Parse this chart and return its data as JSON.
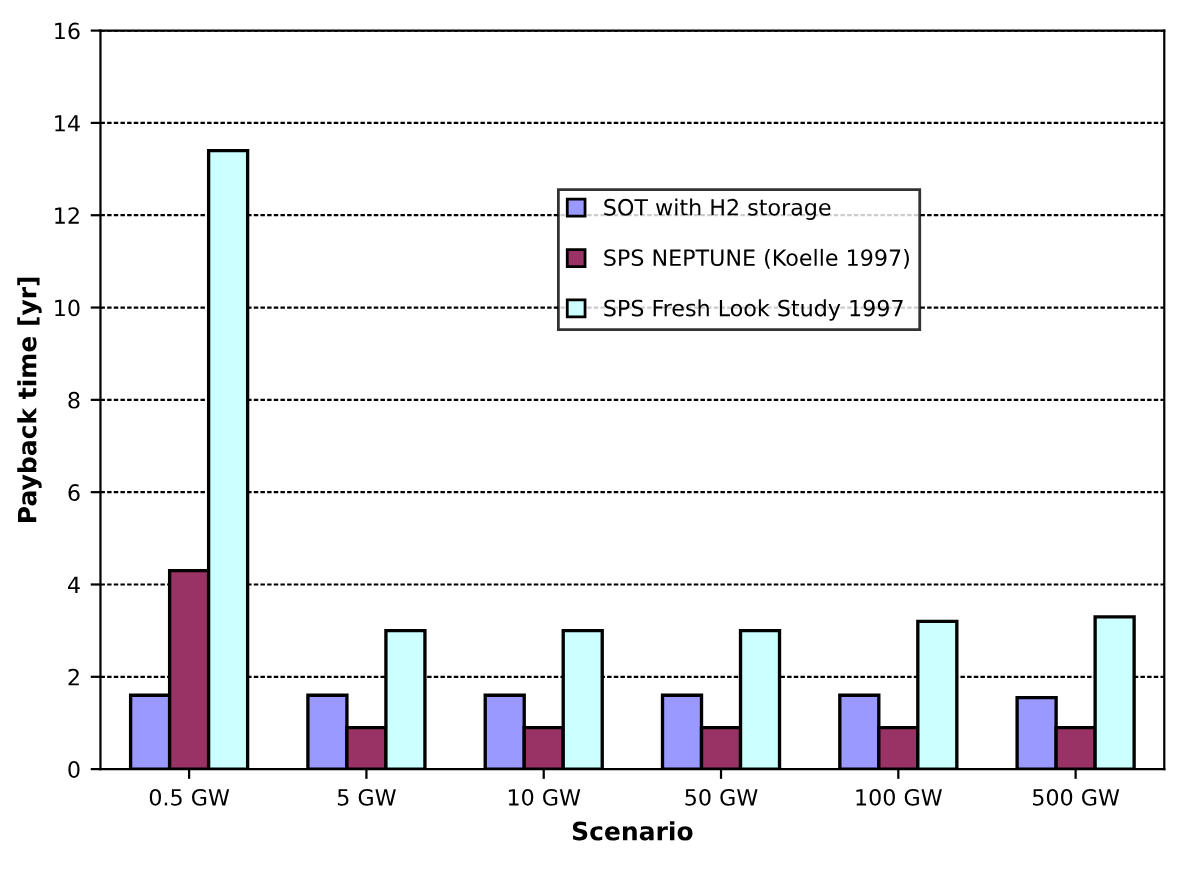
{
  "chart_data": {
    "type": "bar",
    "xlabel": "Scenario",
    "ylabel": "Payback time [yr]",
    "categories": [
      "0.5 GW",
      "5 GW",
      "10 GW",
      "50 GW",
      "100 GW",
      "500 GW"
    ],
    "series": [
      {
        "name": "SOT with H2 storage",
        "color": "#9999ff",
        "values": [
          1.6,
          1.6,
          1.6,
          1.6,
          1.6,
          1.55
        ]
      },
      {
        "name": "SPS NEPTUNE (Koelle 1997)",
        "color": "#993366",
        "values": [
          4.3,
          0.9,
          0.9,
          0.9,
          0.9,
          0.9
        ]
      },
      {
        "name": "SPS Fresh Look Study 1997",
        "color": "#ccffff",
        "values": [
          13.4,
          3.0,
          3.0,
          3.0,
          3.2,
          3.3
        ]
      }
    ],
    "ylim": [
      0,
      16
    ],
    "yticks": [
      0,
      2,
      4,
      6,
      8,
      10,
      12,
      14,
      16
    ],
    "grid": "y",
    "legend": "top right"
  }
}
